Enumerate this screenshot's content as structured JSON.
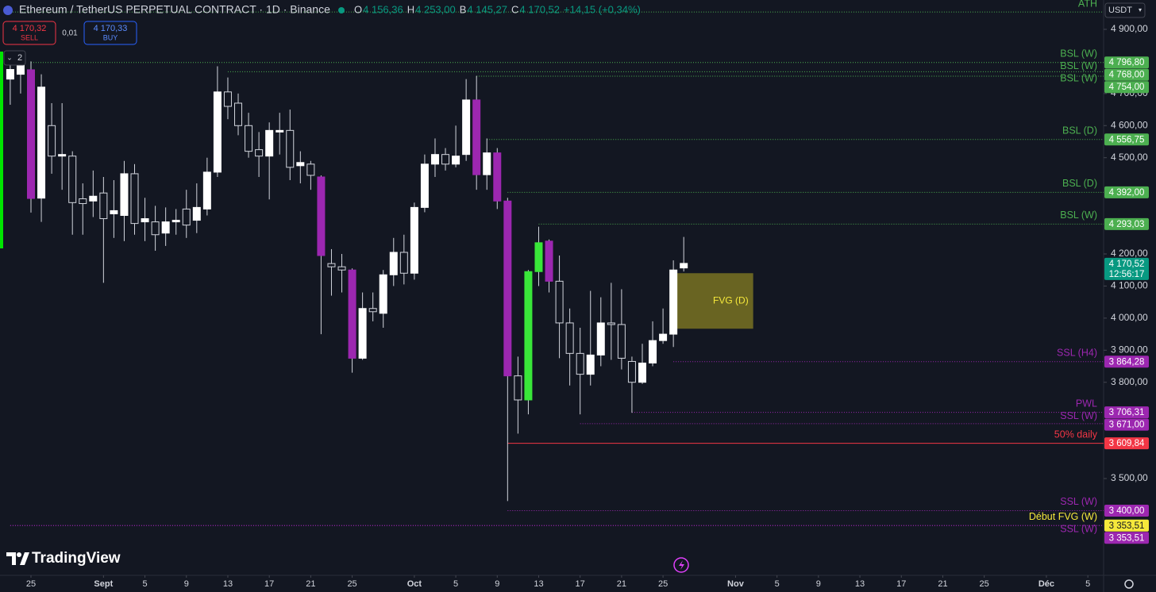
{
  "chart_data": {
    "type": "candlestick",
    "title": "Ethereum / TetherUS PERPETUAL CONTRACT · 1D · Binance",
    "ohlc_header": [
      {
        "label": "O",
        "value": "4 156,36"
      },
      {
        "label": "H",
        "value": "4 253,00"
      },
      {
        "label": "B",
        "value": "4 145,27"
      },
      {
        "label": "C",
        "value": "4 170,52"
      }
    ],
    "change": "+14,15 (+0,34%)",
    "trade": {
      "sell": "4 170,32",
      "sell_label": "SELL",
      "spread": "0,01",
      "buy": "4 170,33",
      "buy_label": "BUY"
    },
    "indicator_count": "2",
    "currency": "USDT",
    "logo": "TradingView",
    "x": [
      -2,
      -1,
      0,
      1,
      2,
      3,
      4,
      5,
      6,
      7,
      8,
      9,
      10,
      11,
      12,
      13,
      14,
      15,
      16,
      17,
      18,
      19,
      20,
      21,
      22,
      23,
      24,
      25,
      26,
      27,
      28,
      29,
      30,
      31,
      32,
      33,
      34,
      35,
      36,
      37,
      38,
      39,
      40,
      41,
      42,
      43,
      44,
      45,
      46,
      47,
      48,
      49,
      50,
      51,
      52,
      53,
      54,
      55,
      56,
      57,
      58,
      59,
      60,
      61,
      62,
      63
    ],
    "open": [
      4745,
      4760,
      4774,
      4374,
      4600,
      4505,
      4505,
      4372,
      4365,
      4390,
      4325,
      4320,
      4450,
      4300,
      4300,
      4265,
      4300,
      4340,
      4305,
      4340,
      4455,
      4705,
      4670,
      4600,
      4525,
      4505,
      4580,
      4585,
      4475,
      4480,
      4440,
      4170,
      4160,
      4150,
      3875,
      4030,
      4015,
      4135,
      4205,
      4140,
      4345,
      4480,
      4510,
      4480,
      4510,
      4680,
      4447,
      4515,
      4365,
      3820,
      3745,
      4145,
      4240,
      4115,
      3985,
      3890,
      3825,
      3885,
      3985,
      3980,
      3865,
      3800,
      3860,
      3930,
      3950,
      4156.36
    ],
    "high": [
      4820,
      4830,
      4800,
      4760,
      4670,
      4670,
      4520,
      4420,
      4460,
      4440,
      4430,
      4490,
      4480,
      4375,
      4350,
      4345,
      4340,
      4400,
      4420,
      4500,
      4785,
      4750,
      4700,
      4640,
      4580,
      4610,
      4640,
      4650,
      4520,
      4490,
      4445,
      4215,
      4200,
      4155,
      4080,
      4080,
      4150,
      4250,
      4260,
      4360,
      4510,
      4560,
      4530,
      4600,
      4745,
      4755,
      4560,
      4530,
      4375,
      3880,
      4150,
      4285,
      4245,
      4195,
      4030,
      3970,
      4085,
      4065,
      4110,
      4090,
      3880,
      3920,
      3990,
      4030,
      4180,
      4253
    ],
    "low": [
      4665,
      4700,
      4329,
      4300,
      4450,
      4400,
      4260,
      4260,
      4315,
      4110,
      4250,
      4240,
      4260,
      4240,
      4210,
      4225,
      4260,
      4250,
      4265,
      4320,
      4440,
      4620,
      4570,
      4500,
      4440,
      4370,
      4510,
      4430,
      4420,
      4400,
      3950,
      4070,
      4080,
      3830,
      3870,
      3990,
      3970,
      4100,
      4105,
      4120,
      4330,
      4440,
      4460,
      4470,
      4490,
      4400,
      4400,
      4340,
      3430,
      3640,
      3700,
      4100,
      4080,
      3875,
      3790,
      3700,
      3790,
      3850,
      3870,
      3840,
      3705,
      3795,
      3850,
      3920,
      3910,
      4145.27
    ],
    "close": [
      4775,
      4790,
      4373,
      4720,
      4505,
      4510,
      4360,
      4357,
      4380,
      4310,
      4335,
      4450,
      4295,
      4310,
      4260,
      4300,
      4305,
      4290,
      4345,
      4455,
      4705,
      4660,
      4600,
      4520,
      4505,
      4585,
      4585,
      4470,
      4485,
      4445,
      4195,
      4160,
      4150,
      3875,
      4030,
      4020,
      4135,
      4205,
      4140,
      4345,
      4480,
      4510,
      4480,
      4505,
      4680,
      4447,
      4515,
      4365,
      3820,
      3745,
      4145,
      4235,
      4115,
      3985,
      3890,
      3825,
      3885,
      3985,
      3980,
      3875,
      3800,
      3860,
      3930,
      3950,
      4150,
      4170.52
    ],
    "colors": [
      "#ffffff",
      "#ffffff",
      "#9c27b0",
      "#ffffff",
      "#131722",
      "#ffffff",
      "#131722",
      "#131722",
      "#ffffff",
      "#131722",
      "#ffffff",
      "#ffffff",
      "#131722",
      "#ffffff",
      "#131722",
      "#ffffff",
      "#ffffff",
      "#131722",
      "#ffffff",
      "#ffffff",
      "#ffffff",
      "#131722",
      "#131722",
      "#131722",
      "#131722",
      "#ffffff",
      "#ffffff",
      "#131722",
      "#ffffff",
      "#131722",
      "#9c27b0",
      "#131722",
      "#131722",
      "#9c27b0",
      "#ffffff",
      "#131722",
      "#ffffff",
      "#ffffff",
      "#131722",
      "#ffffff",
      "#ffffff",
      "#ffffff",
      "#131722",
      "#ffffff",
      "#ffffff",
      "#9c27b0",
      "#ffffff",
      "#9c27b0",
      "#9c27b0",
      "#131722",
      "#39e639",
      "#39e639",
      "#9c27b0",
      "#131722",
      "#131722",
      "#131722",
      "#ffffff",
      "#ffffff",
      "#131722",
      "#131722",
      "#131722",
      "#ffffff",
      "#ffffff",
      "#ffffff",
      "#ffffff",
      "#ffffff"
    ],
    "wick_color": "#d1d4dc",
    "xlim": [
      -2.9885,
      103.52
    ],
    "ylim": [
      3198.3,
      4991.5
    ],
    "xticks": [
      {
        "value": 0,
        "label": "25"
      },
      {
        "value": 7,
        "label": "Sept"
      },
      {
        "value": 11,
        "label": "5"
      },
      {
        "value": 15,
        "label": "9"
      },
      {
        "value": 19,
        "label": "13"
      },
      {
        "value": 23,
        "label": "17"
      },
      {
        "value": 27,
        "label": "21"
      },
      {
        "value": 31,
        "label": "25"
      },
      {
        "value": 37,
        "label": "Oct"
      },
      {
        "value": 41,
        "label": "5"
      },
      {
        "value": 45,
        "label": "9"
      },
      {
        "value": 49,
        "label": "13"
      },
      {
        "value": 53,
        "label": "17"
      },
      {
        "value": 57,
        "label": "21"
      },
      {
        "value": 61,
        "label": "25"
      },
      {
        "value": 68,
        "label": "Nov"
      },
      {
        "value": 72,
        "label": "5"
      },
      {
        "value": 76,
        "label": "9"
      },
      {
        "value": 80,
        "label": "13"
      },
      {
        "value": 84,
        "label": "17"
      },
      {
        "value": 88,
        "label": "21"
      },
      {
        "value": 92,
        "label": "25"
      },
      {
        "value": 98,
        "label": "Déc"
      },
      {
        "value": 102,
        "label": "5"
      }
    ],
    "yticks": [
      {
        "value": 4900,
        "label": "4 900,00"
      },
      {
        "value": 4700,
        "label": "4 700,00"
      },
      {
        "value": 4600,
        "label": "4 600,00"
      },
      {
        "value": 4500,
        "label": "4 500,00"
      },
      {
        "value": 4200,
        "label": "4 200,00"
      },
      {
        "value": 4100,
        "label": "4 100,00"
      },
      {
        "value": 4000,
        "label": "4 000,00"
      },
      {
        "value": 3900,
        "label": "3 900,00"
      },
      {
        "value": 3800,
        "label": "3 800,00"
      },
      {
        "value": 3500,
        "label": "3 500,00"
      }
    ],
    "levels": [
      {
        "label": "ATH",
        "value": 4954,
        "from": -2,
        "color": "#4caf50",
        "style": "dotted"
      },
      {
        "label": "BSL (W)",
        "value": 4796.8,
        "value_label": "4 796,80",
        "from": 0,
        "color": "#4caf50",
        "style": "dotted"
      },
      {
        "label": "BSL (W)",
        "value": 4768,
        "value_label": "4 768,00",
        "from": 19,
        "color": "#4caf50",
        "style": "dotted"
      },
      {
        "label": "BSL (W)",
        "value": 4754,
        "value_label": "4 754,00",
        "from": 43,
        "color": "#4caf50",
        "style": "dotted"
      },
      {
        "label": "BSL (D)",
        "value": 4556.75,
        "value_label": "4 556,75",
        "from": 44,
        "color": "#4caf50",
        "style": "dotted"
      },
      {
        "label": "BSL (D)",
        "value": 4392,
        "value_label": "4 392,00",
        "from": 46,
        "color": "#4caf50",
        "style": "dotted"
      },
      {
        "label": "BSL (W)",
        "value": 4293.03,
        "value_label": "4 293,03",
        "from": 49,
        "color": "#4caf50",
        "style": "dotted"
      },
      {
        "label": "SSL (H4)",
        "value": 3864.28,
        "value_label": "3 864,28",
        "from": 62,
        "color": "#9c27b0",
        "style": "dotted"
      },
      {
        "label": "PWL",
        "value": 3706.31,
        "value_label": "3 706,31",
        "from": 58,
        "color": "#9c27b0",
        "style": "dotted"
      },
      {
        "label": "SSL (W)",
        "value": 3671,
        "value_label": "3 671,00",
        "from": 53,
        "color": "#9c27b0",
        "style": "dotted"
      },
      {
        "label": "50% daily",
        "value": 3609.84,
        "value_label": "3 609,84",
        "from": 46,
        "color": "#f23645",
        "style": "solid"
      },
      {
        "label": "SSL (W)",
        "value": 3400,
        "value_label": "3 400,00",
        "from": 46,
        "color": "#9c27b0",
        "style": "dotted"
      },
      {
        "label": "Début FVG (W)",
        "value": 3353.51,
        "value_label": "3 353,51",
        "from": -2,
        "color": "#f5e83b",
        "style": "dotted"
      },
      {
        "label": "SSL (W)",
        "value": 3353.51,
        "value_label": "3 353,51",
        "from": -2,
        "color": "#9c27b0",
        "style": "dotted"
      }
    ],
    "fvg": {
      "label": "FVG (D)",
      "top": 4140,
      "bottom": 3967,
      "from": 62,
      "to": 69.7,
      "color": "#8f8622",
      "text_color": "#f5e83b"
    },
    "last_price": {
      "value": 4170.52,
      "value_label": "4 170,52",
      "countdown": "12:56:17",
      "color": "#089981"
    }
  }
}
